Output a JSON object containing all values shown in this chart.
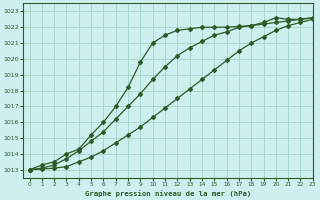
{
  "title": "Graphe pression niveau de la mer (hPa)",
  "bg_color": "#cdf0ee",
  "grid_color": "#a8d8cc",
  "line_color": "#2d5a27",
  "xlim": [
    -0.5,
    23
  ],
  "ylim": [
    1012.5,
    1023.5
  ],
  "xticks": [
    0,
    1,
    2,
    3,
    4,
    5,
    6,
    7,
    8,
    9,
    10,
    11,
    12,
    13,
    14,
    15,
    16,
    17,
    18,
    19,
    20,
    21,
    22,
    23
  ],
  "yticks": [
    1013,
    1014,
    1015,
    1016,
    1017,
    1018,
    1019,
    1020,
    1021,
    1022,
    1023
  ],
  "series1_x": [
    0,
    1,
    2,
    3,
    4,
    5,
    6,
    7,
    8,
    9,
    10,
    11,
    12,
    13,
    14,
    15,
    16,
    17,
    18,
    19,
    20,
    21,
    22,
    23
  ],
  "series1_y": [
    1013.0,
    1013.3,
    1013.5,
    1014.0,
    1014.3,
    1015.2,
    1016.0,
    1017.0,
    1018.2,
    1019.8,
    1021.0,
    1021.5,
    1021.8,
    1021.9,
    1022.0,
    1022.0,
    1022.0,
    1022.05,
    1022.1,
    1022.2,
    1022.3,
    1022.4,
    1022.5,
    1022.6
  ],
  "series2_x": [
    0,
    1,
    2,
    3,
    4,
    5,
    6,
    7,
    8,
    9,
    10,
    11,
    12,
    13,
    14,
    15,
    16,
    17,
    18,
    19,
    20,
    21,
    22,
    23
  ],
  "series2_y": [
    1013.0,
    1013.1,
    1013.3,
    1013.7,
    1014.2,
    1014.8,
    1015.4,
    1016.2,
    1017.0,
    1017.8,
    1018.7,
    1019.5,
    1020.2,
    1020.7,
    1021.1,
    1021.5,
    1021.7,
    1022.0,
    1022.1,
    1022.3,
    1022.6,
    1022.5,
    1022.5,
    1022.6
  ],
  "series3_x": [
    0,
    1,
    2,
    3,
    4,
    5,
    6,
    7,
    8,
    9,
    10,
    11,
    12,
    13,
    14,
    15,
    16,
    17,
    18,
    19,
    20,
    21,
    22,
    23
  ],
  "series3_y": [
    1013.0,
    1013.05,
    1013.1,
    1013.2,
    1013.5,
    1013.8,
    1014.2,
    1014.7,
    1015.2,
    1015.7,
    1016.3,
    1016.9,
    1017.5,
    1018.1,
    1018.7,
    1019.3,
    1019.9,
    1020.5,
    1021.0,
    1021.4,
    1021.8,
    1022.1,
    1022.3,
    1022.5
  ]
}
